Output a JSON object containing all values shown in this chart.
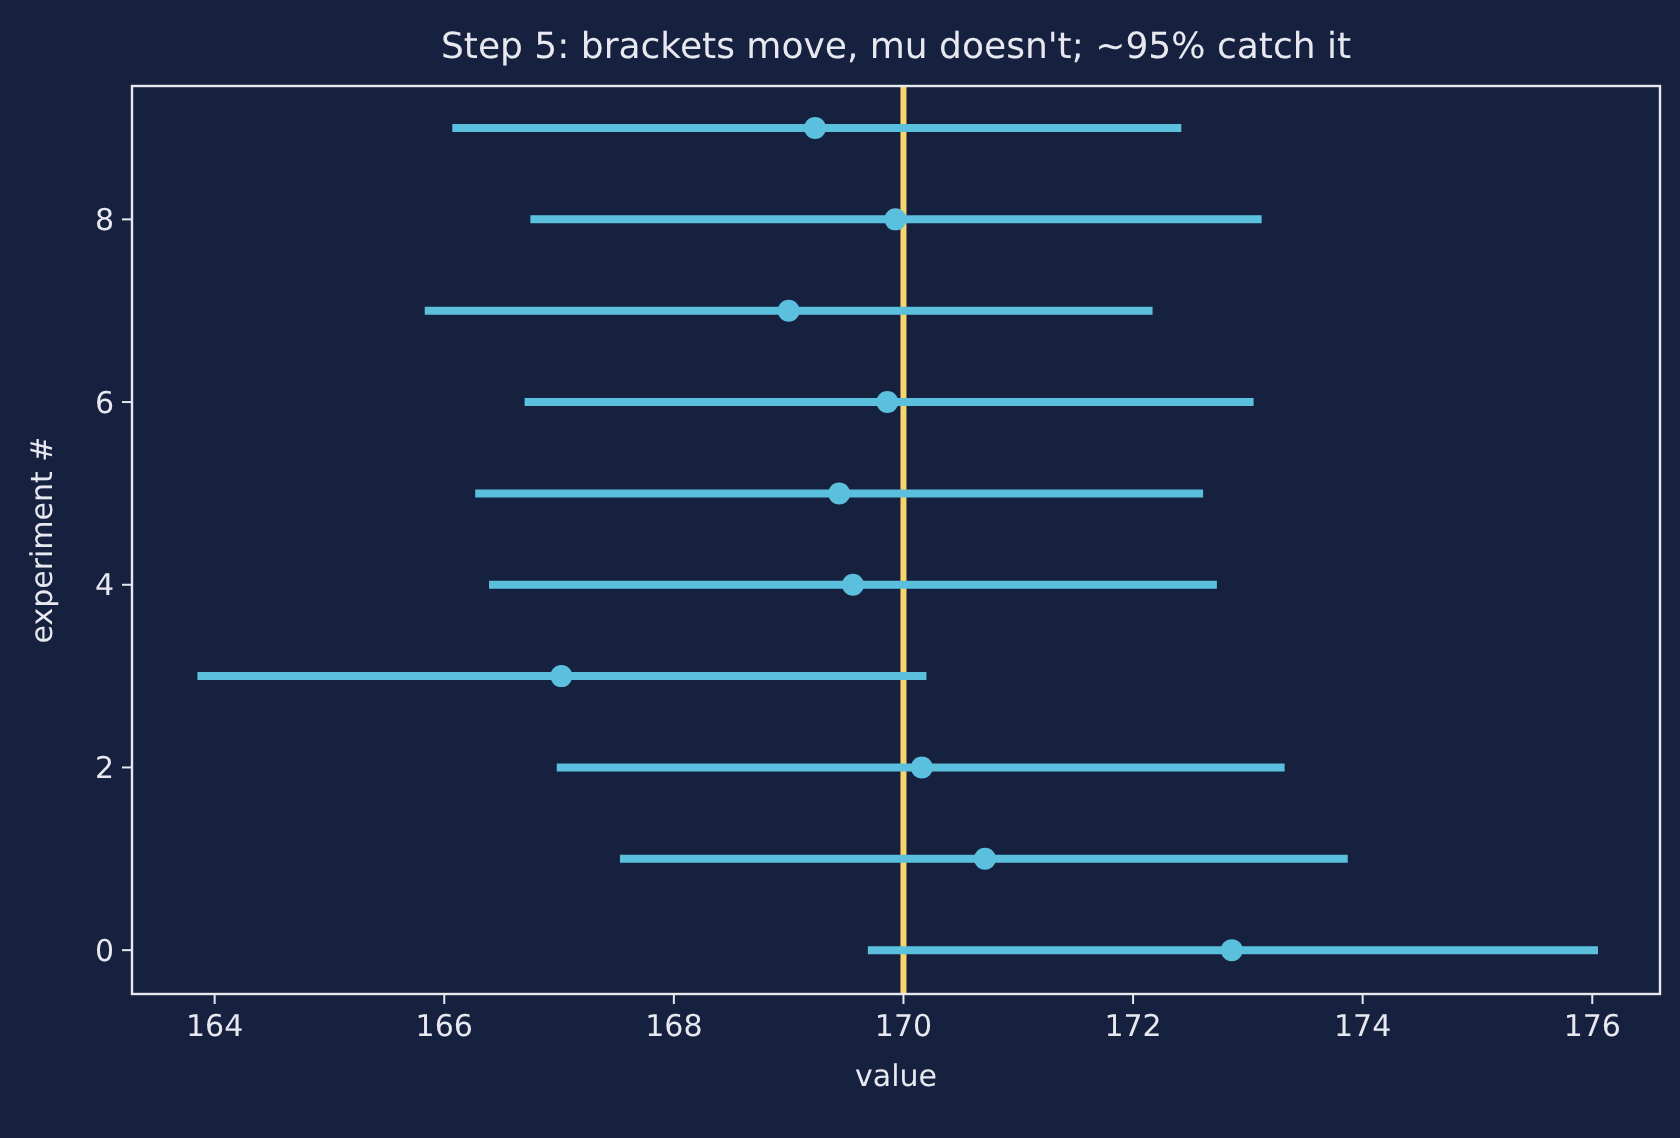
{
  "chart_data": {
    "type": "scatter",
    "title": "Step 5: brackets move, mu doesn't; ~95% catch it",
    "xlabel": "value",
    "ylabel": "experiment #",
    "x": [
      172.86,
      170.71,
      170.16,
      167.02,
      169.56,
      169.44,
      169.86,
      169.0,
      169.93,
      169.23
    ],
    "series": [
      {
        "color": "#5bc0de",
        "values": [
          0,
          1,
          2,
          3,
          4,
          5,
          6,
          7,
          8,
          9
        ],
        "xerrors": [
          [
            169.69,
            176.05
          ],
          [
            167.53,
            173.87
          ],
          [
            166.98,
            173.32
          ],
          [
            163.85,
            170.2
          ],
          [
            166.39,
            172.73
          ],
          [
            166.27,
            172.61
          ],
          [
            166.7,
            173.05
          ],
          [
            165.83,
            172.17
          ],
          [
            166.75,
            173.12
          ],
          [
            166.07,
            172.42
          ]
        ]
      }
    ],
    "xlim": [
      163.28,
      176.59
    ],
    "xticks": [
      164,
      166,
      168,
      170,
      172,
      174,
      176
    ],
    "ylim": [
      -0.48,
      9.46
    ],
    "yticks": [
      0,
      2,
      4,
      6,
      8
    ],
    "ref_lines": [
      {
        "axis": "x",
        "value": 170,
        "color": "#f7d56a"
      }
    ],
    "marker": "circle",
    "grid": false
  }
}
